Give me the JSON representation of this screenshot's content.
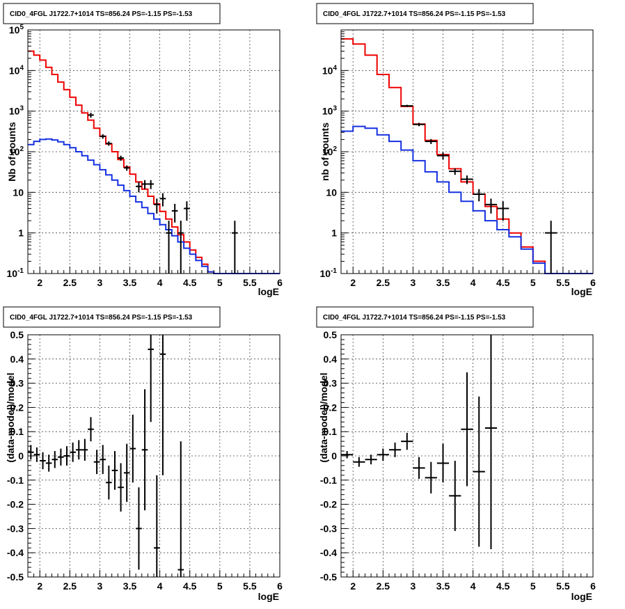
{
  "colors": {
    "data": "#000000",
    "model_total": "#ee0000",
    "model_source": "#1530e0",
    "grid": "#444444",
    "frame": "#000000"
  },
  "chart_data": [
    {
      "type": "line",
      "title": "CID0_4FGL J1722.7+1014 TS=856.24 PS=-1.15 PS=-1.53",
      "xlabel": "logE",
      "ylabel": "Nb of counts",
      "xlim": [
        1.8,
        6.0
      ],
      "ylim": [
        0.1,
        100000
      ],
      "yscale": "log",
      "grid": true,
      "xticks": [
        "2",
        "2.5",
        "3",
        "3.5",
        "4",
        "4.5",
        "5",
        "5.5",
        "6"
      ],
      "yticks": [
        "10^-1",
        "1",
        "10",
        "10^2",
        "10^3",
        "10^4",
        "10^5"
      ],
      "bin_edges": [
        1.8,
        1.9,
        2.0,
        2.1,
        2.2,
        2.3,
        2.4,
        2.5,
        2.6,
        2.7,
        2.8,
        2.9,
        3.0,
        3.1,
        3.2,
        3.3,
        3.4,
        3.5,
        3.6,
        3.7,
        3.8,
        3.9,
        4.0,
        4.1,
        4.2,
        4.3,
        4.4,
        4.5,
        4.6,
        4.7,
        4.8,
        4.9,
        5.0,
        5.1,
        5.2,
        5.3,
        5.4,
        5.5,
        5.6,
        5.7,
        5.8,
        5.9,
        6.0
      ],
      "series": [
        {
          "kind": "model_total",
          "values": [
            30000,
            24000,
            18000,
            12000,
            8000,
            5200,
            3400,
            2200,
            1400,
            900,
            600,
            380,
            240,
            155,
            100,
            64,
            42,
            28,
            18,
            12,
            8,
            5.2,
            3.4,
            2.2,
            1.4,
            0.9,
            0.6,
            0.38,
            0.25,
            0.17,
            0.11,
            0.1,
            0.1,
            0.1,
            0.1,
            0.1,
            0.1,
            0.1,
            0.1,
            0.1,
            0.1,
            0.1
          ]
        },
        {
          "kind": "model_source",
          "values": [
            150,
            180,
            200,
            205,
            195,
            175,
            150,
            125,
            100,
            80,
            62,
            48,
            36,
            27,
            20,
            15,
            11,
            8,
            5.8,
            4.2,
            3,
            2.2,
            1.6,
            1.2,
            0.85,
            0.6,
            0.42,
            0.3,
            0.21,
            0.15,
            0.11,
            0.1,
            0.1,
            0.1,
            0.1,
            0.1,
            0.1,
            0.1,
            0.1,
            0.1,
            0.1,
            0.1
          ]
        },
        {
          "kind": "data",
          "points": [
            {
              "x": 2.85,
              "y": 800,
              "lo": 690,
              "hi": 910
            },
            {
              "x": 3.05,
              "y": 240,
              "lo": 210,
              "hi": 270
            },
            {
              "x": 3.15,
              "y": 160,
              "lo": 140,
              "hi": 180
            },
            {
              "x": 3.35,
              "y": 70,
              "lo": 60,
              "hi": 80
            },
            {
              "x": 3.45,
              "y": 40,
              "lo": 34,
              "hi": 46
            },
            {
              "x": 3.65,
              "y": 14,
              "lo": 10,
              "hi": 18
            },
            {
              "x": 3.75,
              "y": 16,
              "lo": 12,
              "hi": 20
            },
            {
              "x": 3.85,
              "y": 16,
              "lo": 12,
              "hi": 20
            },
            {
              "x": 3.95,
              "y": 5,
              "lo": 3,
              "hi": 7
            },
            {
              "x": 4.05,
              "y": 7,
              "lo": 4.5,
              "hi": 9.5
            },
            {
              "x": 4.15,
              "y": 1,
              "lo": 0.1,
              "hi": 2
            },
            {
              "x": 4.25,
              "y": 3.5,
              "lo": 1.8,
              "hi": 5.2
            },
            {
              "x": 4.35,
              "y": 1,
              "lo": 0.1,
              "hi": 2
            },
            {
              "x": 4.45,
              "y": 4,
              "lo": 2,
              "hi": 6
            },
            {
              "x": 5.25,
              "y": 1,
              "lo": 0.1,
              "hi": 2
            }
          ]
        }
      ]
    },
    {
      "type": "line",
      "title": "CID0_4FGL J1722.7+1014 TS=856.24 PS=-1.15 PS=-1.53",
      "xlabel": "logE",
      "ylabel": "nb of counts",
      "xlim": [
        1.8,
        6.0
      ],
      "ylim": [
        0.1,
        100000
      ],
      "yscale": "log",
      "grid": true,
      "xticks": [
        "2",
        "2.5",
        "3",
        "3.5",
        "4",
        "4.5",
        "5",
        "5.5",
        "6"
      ],
      "yticks": [
        "10^-1",
        "1",
        "10",
        "10^2",
        "10^3",
        "10^4"
      ],
      "bin_edges": [
        1.8,
        2.0,
        2.2,
        2.4,
        2.6,
        2.8,
        3.0,
        3.2,
        3.4,
        3.6,
        3.8,
        4.0,
        4.2,
        4.4,
        4.6,
        4.8,
        5.0,
        5.2,
        5.4,
        5.6,
        5.8,
        6.0
      ],
      "series": [
        {
          "kind": "model_total",
          "values": [
            60000,
            45000,
            24000,
            8000,
            3800,
            1300,
            480,
            190,
            85,
            38,
            18,
            9,
            4.5,
            2.2,
            1,
            0.45,
            0.2,
            0.1,
            0.1,
            0.1,
            0.1
          ]
        },
        {
          "kind": "model_source",
          "values": [
            320,
            420,
            380,
            260,
            180,
            110,
            60,
            32,
            18,
            10,
            6,
            3.5,
            2,
            1.2,
            0.8,
            0.4,
            0.18,
            0.1,
            0.1,
            0.1,
            0.1
          ]
        },
        {
          "kind": "data",
          "points": [
            {
              "x": 2.9,
              "y": 1350,
              "lo": 1270,
              "hi": 1430
            },
            {
              "x": 3.1,
              "y": 470,
              "lo": 425,
              "hi": 515
            },
            {
              "x": 3.3,
              "y": 180,
              "lo": 155,
              "hi": 205
            },
            {
              "x": 3.5,
              "y": 80,
              "lo": 64,
              "hi": 96
            },
            {
              "x": 3.7,
              "y": 33,
              "lo": 27,
              "hi": 39
            },
            {
              "x": 3.9,
              "y": 21,
              "lo": 16,
              "hi": 26
            },
            {
              "x": 4.1,
              "y": 9,
              "lo": 6,
              "hi": 12
            },
            {
              "x": 4.3,
              "y": 5,
              "lo": 3,
              "hi": 7
            },
            {
              "x": 4.5,
              "y": 4,
              "lo": 2,
              "hi": 6
            },
            {
              "x": 5.3,
              "y": 1,
              "lo": 0.1,
              "hi": 2
            }
          ]
        }
      ]
    },
    {
      "type": "scatter",
      "title": "CID0_4FGL J1722.7+1014 TS=856.24 PS=-1.15 PS=-1.53",
      "xlabel": "logE",
      "ylabel": "(data-model)/model",
      "xlim": [
        1.8,
        6.0
      ],
      "ylim": [
        -0.5,
        0.5
      ],
      "yscale": "linear",
      "grid": true,
      "xticks": [
        "2",
        "2.5",
        "3",
        "3.5",
        "4",
        "4.5",
        "5",
        "5.5",
        "6"
      ],
      "yticks": [
        "-0.5",
        "-0.4",
        "-0.3",
        "-0.2",
        "-0.1",
        "0",
        "0.1",
        "0.2",
        "0.3",
        "0.4",
        "0.5"
      ],
      "xerr": 0.05,
      "points": [
        {
          "x": 1.85,
          "y": 0.015,
          "err": 0.03
        },
        {
          "x": 1.95,
          "y": 0.005,
          "err": 0.03
        },
        {
          "x": 2.05,
          "y": -0.02,
          "err": 0.035
        },
        {
          "x": 2.15,
          "y": -0.03,
          "err": 0.035
        },
        {
          "x": 2.25,
          "y": -0.015,
          "err": 0.035
        },
        {
          "x": 2.35,
          "y": -0.005,
          "err": 0.035
        },
        {
          "x": 2.45,
          "y": 0.0,
          "err": 0.04
        },
        {
          "x": 2.55,
          "y": 0.015,
          "err": 0.04
        },
        {
          "x": 2.65,
          "y": 0.025,
          "err": 0.04
        },
        {
          "x": 2.75,
          "y": 0.025,
          "err": 0.045
        },
        {
          "x": 2.85,
          "y": 0.11,
          "err": 0.05
        },
        {
          "x": 2.95,
          "y": -0.025,
          "err": 0.05
        },
        {
          "x": 3.05,
          "y": -0.015,
          "err": 0.06
        },
        {
          "x": 3.15,
          "y": -0.11,
          "err": 0.07
        },
        {
          "x": 3.25,
          "y": -0.06,
          "err": 0.08
        },
        {
          "x": 3.35,
          "y": -0.13,
          "err": 0.1
        },
        {
          "x": 3.45,
          "y": -0.07,
          "err": 0.12
        },
        {
          "x": 3.55,
          "y": 0.03,
          "err": 0.14
        },
        {
          "x": 3.65,
          "y": -0.3,
          "err": 0.17
        },
        {
          "x": 3.75,
          "y": 0.025,
          "err": 0.25
        },
        {
          "x": 3.85,
          "y": 0.44,
          "err": 0.3
        },
        {
          "x": 3.95,
          "y": -0.38,
          "err": 0.3
        },
        {
          "x": 4.05,
          "y": 0.42,
          "err": 0.5
        },
        {
          "x": 4.35,
          "y": -0.47,
          "err": 0.53
        }
      ]
    },
    {
      "type": "scatter",
      "title": "CID0_4FGL J1722.7+1014 TS=856.24 PS=-1.15 PS=-1.53",
      "xlabel": "logE",
      "ylabel": "(data-model)/model",
      "xlim": [
        1.8,
        6.0
      ],
      "ylim": [
        -0.5,
        0.5
      ],
      "yscale": "linear",
      "grid": true,
      "xticks": [
        "2",
        "2.5",
        "3",
        "3.5",
        "4",
        "4.5",
        "5",
        "5.5",
        "6"
      ],
      "yticks": [
        "-0.5",
        "-0.4",
        "-0.3",
        "-0.2",
        "-0.1",
        "0",
        "0.1",
        "0.2",
        "0.3",
        "0.4",
        "0.5"
      ],
      "xerr": 0.1,
      "points": [
        {
          "x": 1.9,
          "y": 0.005,
          "err": 0.015
        },
        {
          "x": 2.1,
          "y": -0.025,
          "err": 0.02
        },
        {
          "x": 2.3,
          "y": -0.015,
          "err": 0.02
        },
        {
          "x": 2.5,
          "y": 0.005,
          "err": 0.025
        },
        {
          "x": 2.7,
          "y": 0.025,
          "err": 0.03
        },
        {
          "x": 2.9,
          "y": 0.06,
          "err": 0.035
        },
        {
          "x": 3.1,
          "y": -0.05,
          "err": 0.045
        },
        {
          "x": 3.3,
          "y": -0.09,
          "err": 0.065
        },
        {
          "x": 3.5,
          "y": -0.03,
          "err": 0.08
        },
        {
          "x": 3.7,
          "y": -0.165,
          "err": 0.145
        },
        {
          "x": 3.9,
          "y": 0.11,
          "err": 0.235
        },
        {
          "x": 4.1,
          "y": -0.065,
          "err": 0.31
        },
        {
          "x": 4.3,
          "y": 0.115,
          "err": 0.5
        }
      ]
    }
  ]
}
